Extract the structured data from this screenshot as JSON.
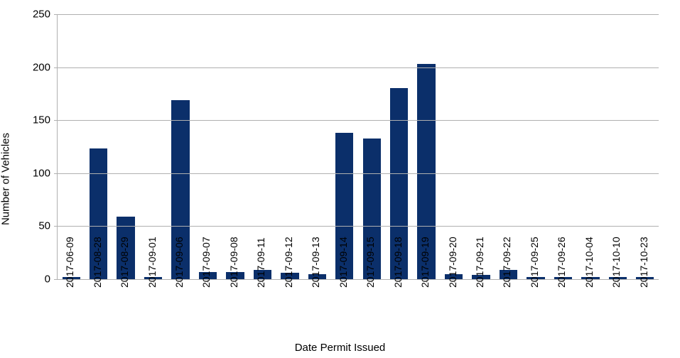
{
  "chart": {
    "type": "bar",
    "x_label": "Date Permit Issued",
    "y_label": "Number of Vehicles",
    "label_fontsize": 15,
    "tick_fontsize": 15,
    "background_color": "#ffffff",
    "grid_color": "#b0b0b0",
    "axis_color": "#b0b0b0",
    "bar_color": "#0b2f6a",
    "bar_width": 0.66,
    "ylim": [
      0,
      250
    ],
    "ytick_step": 50,
    "yticks": [
      0,
      50,
      100,
      150,
      200,
      250
    ],
    "categories": [
      "2017-06-09",
      "2017-08-28",
      "2017-08-29",
      "2017-09-01",
      "2017-09-06",
      "2017-09-07",
      "2017-09-08",
      "2017-09-11",
      "2017-09-12",
      "2017-09-13",
      "2017-09-14",
      "2017-09-15",
      "2017-09-18",
      "2017-09-19",
      "2017-09-20",
      "2017-09-21",
      "2017-09-22",
      "2017-09-25",
      "2017-09-26",
      "2017-10-04",
      "2017-10-10",
      "2017-10-23"
    ],
    "values": [
      2,
      123,
      59,
      2,
      169,
      7,
      7,
      9,
      6,
      5,
      138,
      133,
      180,
      203,
      5,
      4,
      9,
      2,
      2,
      2,
      2,
      2
    ]
  }
}
